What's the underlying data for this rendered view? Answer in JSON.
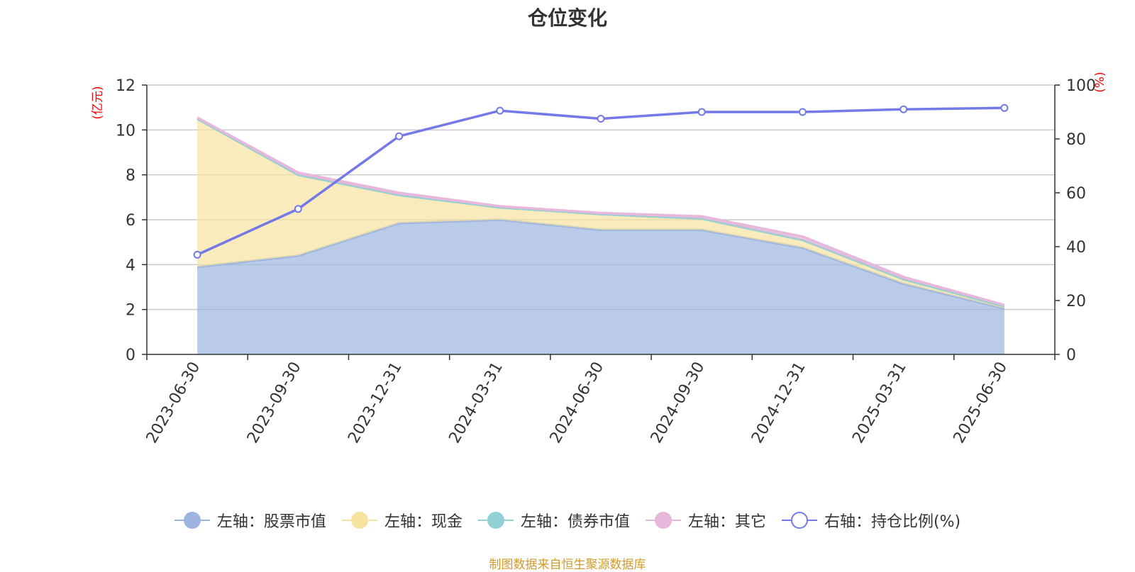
{
  "chart_data": {
    "type": "area",
    "title": "仓位变化",
    "categories": [
      "2023-06-30",
      "2023-09-30",
      "2023-12-31",
      "2024-03-31",
      "2024-06-30",
      "2024-09-30",
      "2024-12-31",
      "2025-03-31",
      "2025-06-30"
    ],
    "left_axis": {
      "unit": "(亿元)",
      "ylim": [
        0,
        12
      ],
      "ticks": [
        "0",
        "2",
        "4",
        "6",
        "8",
        "10",
        "12"
      ]
    },
    "right_axis": {
      "unit": "(%)",
      "ylim": [
        0,
        100
      ],
      "ticks": [
        "0",
        "20",
        "40",
        "60",
        "80",
        "100"
      ]
    },
    "grid": true,
    "legend_position": "bottom",
    "series": [
      {
        "name": "左轴：股票市值",
        "axis": "left",
        "stacked": true,
        "color": "#9bb5e0",
        "values": [
          3.9,
          4.4,
          5.85,
          6.0,
          5.55,
          5.55,
          4.75,
          3.15,
          2.05
        ]
      },
      {
        "name": "左轴：现金",
        "axis": "left",
        "stacked": true,
        "color": "#f6e3a0",
        "values": [
          6.6,
          3.6,
          1.25,
          0.55,
          0.7,
          0.5,
          0.35,
          0.2,
          0.1
        ]
      },
      {
        "name": "左轴：债券市值",
        "axis": "left",
        "stacked": true,
        "color": "#92d1d3",
        "values": [
          0,
          0,
          0,
          0,
          0,
          0,
          0,
          0,
          0
        ]
      },
      {
        "name": "左轴：其它",
        "axis": "left",
        "stacked": true,
        "color": "#e8b7dc",
        "values": [
          0.05,
          0.1,
          0.1,
          0.05,
          0.05,
          0.1,
          0.15,
          0.1,
          0.05
        ]
      },
      {
        "name": "右轴：持仓比例(%)",
        "axis": "right",
        "type": "line",
        "color": "#7479e8",
        "values": [
          37,
          54,
          81,
          90.5,
          87.5,
          90,
          90,
          91,
          91.5
        ]
      }
    ],
    "source": "制图数据来自恒生聚源数据库"
  }
}
